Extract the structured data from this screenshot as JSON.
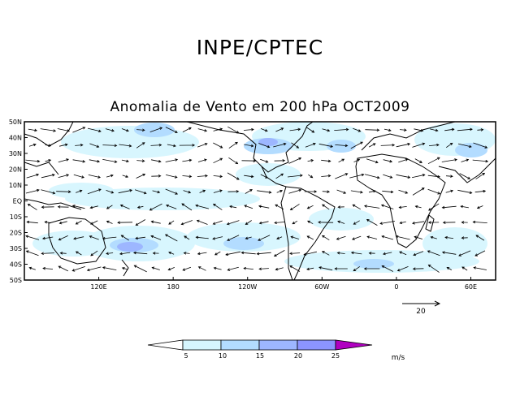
{
  "header": {
    "title": "INPE/CPTEC"
  },
  "map": {
    "title": "Anomalia de Vento em 200 hPa OCT2009",
    "lat_labels": [
      "50N",
      "40N",
      "30N",
      "20N",
      "10N",
      "EQ",
      "10S",
      "20S",
      "30S",
      "40S",
      "50S"
    ],
    "lon_labels": [
      "120E",
      "180",
      "120W",
      "60W",
      "0",
      "60E"
    ],
    "lon_values": [
      120,
      180,
      240,
      300,
      360,
      420
    ],
    "lon_range": [
      60,
      440
    ],
    "lat_range": [
      -50,
      50
    ]
  },
  "reference_vector": {
    "label": "20"
  },
  "colorbar": {
    "ticks": [
      "5",
      "10",
      "15",
      "20",
      "25"
    ],
    "colors": [
      "#ffffff",
      "#d6f6fe",
      "#b3dcff",
      "#9db6ff",
      "#8c94ff",
      "#6366f0",
      "#b000c0"
    ],
    "unit": "m/s"
  }
}
